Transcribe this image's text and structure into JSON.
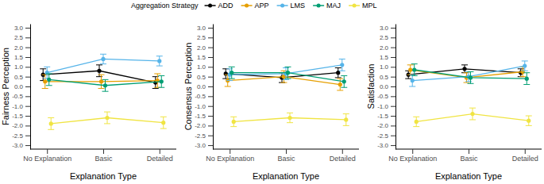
{
  "chart_data": [
    {
      "type": "line",
      "y_label": "Fairness Perception",
      "x_label": "Explanation Type",
      "legend_title": "Aggregation Strategy",
      "categories": [
        "No Explanation",
        "Basic",
        "Detailed"
      ],
      "ylim": [
        -3.2,
        3.2
      ],
      "yticks": [
        {
          "value": -3,
          "label": "-3.0"
        },
        {
          "value": -2.5,
          "label": "-2.5"
        },
        {
          "value": -2,
          "label": "-2.0"
        },
        {
          "value": -1.5,
          "label": "-1.5"
        },
        {
          "value": -1,
          "label": "-1.0"
        },
        {
          "value": -0.5,
          "label": "-0.5"
        },
        {
          "value": 0,
          "label": "0.0"
        },
        {
          "value": 0.5,
          "label": "0.5"
        },
        {
          "value": 1,
          "label": "1.0"
        },
        {
          "value": 1.5,
          "label": "1.5"
        },
        {
          "value": 2,
          "label": "2.0"
        },
        {
          "value": 2.5,
          "label": "2.5"
        },
        {
          "value": 3,
          "label": "3.0"
        }
      ],
      "series": [
        {
          "name": "ADD",
          "color": "#000000",
          "marker": "circle",
          "values": [
            0.6,
            0.8,
            0.2
          ],
          "errors": [
            0.3,
            0.3,
            0.3
          ]
        },
        {
          "name": "APP",
          "color": "#E69F00",
          "marker": "circle",
          "values": [
            0.25,
            0.25,
            0.3
          ],
          "errors": [
            0.35,
            0.35,
            0.35
          ]
        },
        {
          "name": "LMS",
          "color": "#56B4E9",
          "marker": "circle",
          "values": [
            0.7,
            1.4,
            1.3
          ],
          "errors": [
            0.3,
            0.25,
            0.25
          ]
        },
        {
          "name": "MAJ",
          "color": "#009E73",
          "marker": "circle",
          "values": [
            0.35,
            0.05,
            0.25
          ],
          "errors": [
            0.3,
            0.3,
            0.3
          ]
        },
        {
          "name": "MPL",
          "color": "#F0E442",
          "marker": "circle",
          "values": [
            -1.9,
            -1.6,
            -1.85
          ],
          "errors": [
            0.3,
            0.3,
            0.3
          ]
        }
      ]
    },
    {
      "type": "line",
      "y_label": "Consensus Perception",
      "x_label": "Explanation Type",
      "categories": [
        "No Explanation",
        "Basic",
        "Detailed"
      ],
      "ylim": [
        -3.2,
        3.2
      ],
      "yticks": [
        {
          "value": -3,
          "label": "-3.0"
        },
        {
          "value": -2.5,
          "label": "-2.5"
        },
        {
          "value": -2,
          "label": "-2.0"
        },
        {
          "value": -1.5,
          "label": "-1.5"
        },
        {
          "value": -1,
          "label": "-1.0"
        },
        {
          "value": -0.5,
          "label": "-0.5"
        },
        {
          "value": 0,
          "label": "0.0"
        },
        {
          "value": 0.5,
          "label": "0.5"
        },
        {
          "value": 1,
          "label": "1.0"
        },
        {
          "value": 1.5,
          "label": "1.5"
        },
        {
          "value": 2,
          "label": "2.0"
        },
        {
          "value": 2.5,
          "label": "2.5"
        },
        {
          "value": 3,
          "label": "3.0"
        }
      ],
      "series": [
        {
          "name": "ADD",
          "color": "#000000",
          "marker": "circle",
          "values": [
            0.65,
            0.45,
            0.7
          ],
          "errors": [
            0.25,
            0.25,
            0.25
          ]
        },
        {
          "name": "APP",
          "color": "#E69F00",
          "marker": "circle",
          "values": [
            0.3,
            0.5,
            0.1
          ],
          "errors": [
            0.3,
            0.3,
            0.3
          ]
        },
        {
          "name": "LMS",
          "color": "#56B4E9",
          "marker": "circle",
          "values": [
            0.6,
            0.65,
            1.1
          ],
          "errors": [
            0.3,
            0.3,
            0.3
          ]
        },
        {
          "name": "MAJ",
          "color": "#009E73",
          "marker": "circle",
          "values": [
            0.7,
            0.7,
            0.25
          ],
          "errors": [
            0.3,
            0.3,
            0.3
          ]
        },
        {
          "name": "MPL",
          "color": "#F0E442",
          "marker": "circle",
          "values": [
            -1.8,
            -1.6,
            -1.7
          ],
          "errors": [
            0.25,
            0.25,
            0.3
          ]
        }
      ]
    },
    {
      "type": "line",
      "y_label": "Satisfaction",
      "x_label": "Explanation Type",
      "categories": [
        "No Explanation",
        "Basic",
        "Detailed"
      ],
      "ylim": [
        -3.2,
        3.2
      ],
      "yticks": [
        {
          "value": -3,
          "label": "-3.0"
        },
        {
          "value": -2.5,
          "label": "-2.5"
        },
        {
          "value": -2,
          "label": "-2.0"
        },
        {
          "value": -1.5,
          "label": "-1.5"
        },
        {
          "value": -1,
          "label": "-1.0"
        },
        {
          "value": -0.5,
          "label": "-0.5"
        },
        {
          "value": 0,
          "label": "0.0"
        },
        {
          "value": 0.5,
          "label": "0.5"
        },
        {
          "value": 1,
          "label": "1.0"
        },
        {
          "value": 1.5,
          "label": "1.5"
        },
        {
          "value": 2,
          "label": "2.0"
        },
        {
          "value": 2.5,
          "label": "2.5"
        },
        {
          "value": 3,
          "label": "3.0"
        }
      ],
      "series": [
        {
          "name": "ADD",
          "color": "#000000",
          "marker": "circle",
          "values": [
            0.6,
            0.9,
            0.7
          ],
          "errors": [
            0.2,
            0.2,
            0.2
          ]
        },
        {
          "name": "APP",
          "color": "#E69F00",
          "marker": "circle",
          "values": [
            0.85,
            0.45,
            0.75
          ],
          "errors": [
            0.25,
            0.25,
            0.25
          ]
        },
        {
          "name": "LMS",
          "color": "#56B4E9",
          "marker": "circle",
          "values": [
            0.3,
            0.5,
            1.05
          ],
          "errors": [
            0.3,
            0.25,
            0.25
          ]
        },
        {
          "name": "MAJ",
          "color": "#009E73",
          "marker": "circle",
          "values": [
            0.85,
            0.45,
            0.4
          ],
          "errors": [
            0.3,
            0.3,
            0.3
          ]
        },
        {
          "name": "MPL",
          "color": "#F0E442",
          "marker": "circle",
          "values": [
            -1.8,
            -1.4,
            -1.75
          ],
          "errors": [
            0.25,
            0.3,
            0.25
          ]
        }
      ]
    }
  ]
}
